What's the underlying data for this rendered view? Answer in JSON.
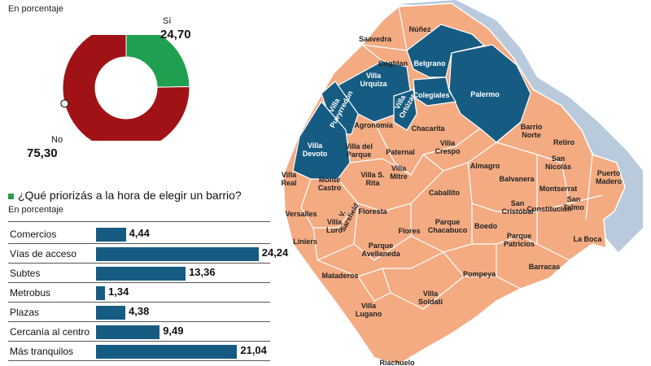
{
  "donut": {
    "subtitle": "En porcentaje",
    "slices": [
      {
        "name": "Sí",
        "value": 24.7,
        "label": "24,70",
        "color": "#1fa050"
      },
      {
        "name": "No",
        "value": 75.3,
        "label": "75,30",
        "color": "#a01215"
      }
    ]
  },
  "bars_section": {
    "title": "¿Qué priorizás a la hora de elegir un barrio?",
    "subtitle": "En porcentaje"
  },
  "chart_data": [
    {
      "type": "pie",
      "title": "",
      "categories": [
        "Sí",
        "No"
      ],
      "values": [
        24.7,
        75.3
      ]
    },
    {
      "type": "bar",
      "title": "¿Qué priorizás a la hora de elegir un barrio?",
      "categories": [
        "Comercios",
        "Vías de acceso",
        "Subtes",
        "Metrobus",
        "Plazas",
        "Cercanía al centro",
        "Más tranquilos"
      ],
      "values": [
        4.44,
        24.24,
        13.36,
        1.34,
        4.38,
        9.49,
        21.04
      ],
      "value_labels": [
        "4,44",
        "24,24",
        "13,36",
        "1,34",
        "4,38",
        "9,49",
        "21,04"
      ],
      "ylim": [
        0,
        25
      ]
    }
  ],
  "map": {
    "colors": {
      "highlight": "#165c82",
      "normal": "#f4ab82",
      "border": "#ffffff",
      "water": "#b0c4d8"
    },
    "neighborhoods": [
      {
        "name": "Saavedra",
        "hl": false
      },
      {
        "name": "Núñez",
        "hl": false
      },
      {
        "name": "Coghlan",
        "hl": false
      },
      {
        "name": "Belgrano",
        "hl": true
      },
      {
        "name": "Villa Urquiza",
        "hl": true
      },
      {
        "name": "Villa Pueyrredón",
        "hl": true
      },
      {
        "name": "Villa Ortúzar",
        "hl": true
      },
      {
        "name": "Colegiales",
        "hl": true
      },
      {
        "name": "Palermo",
        "hl": true
      },
      {
        "name": "Agronomía",
        "hl": false
      },
      {
        "name": "Chacarita",
        "hl": false
      },
      {
        "name": "Villa Devoto",
        "hl": true
      },
      {
        "name": "Villa del Parque",
        "hl": false
      },
      {
        "name": "Paternal",
        "hl": false
      },
      {
        "name": "Villa Crespo",
        "hl": false
      },
      {
        "name": "Almagro",
        "hl": false
      },
      {
        "name": "Barrio Norte",
        "hl": false
      },
      {
        "name": "Retiro",
        "hl": false
      },
      {
        "name": "Villa Real",
        "hl": false
      },
      {
        "name": "Monte Castro",
        "hl": false
      },
      {
        "name": "Villa S. Rita",
        "hl": false
      },
      {
        "name": "Villa Mitre",
        "hl": false
      },
      {
        "name": "Caballito",
        "hl": false
      },
      {
        "name": "Balvanera",
        "hl": false
      },
      {
        "name": "San Nicolás",
        "hl": false
      },
      {
        "name": "Puerto Madero",
        "hl": false
      },
      {
        "name": "Montserrat",
        "hl": false
      },
      {
        "name": "Versalles",
        "hl": false
      },
      {
        "name": "V. Sarsfield",
        "hl": false
      },
      {
        "name": "Floresta",
        "hl": false
      },
      {
        "name": "San Cristóbal",
        "hl": false
      },
      {
        "name": "Constitución",
        "hl": false
      },
      {
        "name": "San Telmo",
        "hl": false
      },
      {
        "name": "Liniers",
        "hl": false
      },
      {
        "name": "Villa Luro",
        "hl": false
      },
      {
        "name": "Flores",
        "hl": false
      },
      {
        "name": "Parque Chacabuco",
        "hl": false
      },
      {
        "name": "Boedo",
        "hl": false
      },
      {
        "name": "Parque Patricios",
        "hl": false
      },
      {
        "name": "La Boca",
        "hl": false
      },
      {
        "name": "Parque Avellaneda",
        "hl": false
      },
      {
        "name": "Barracas",
        "hl": false
      },
      {
        "name": "Mataderos",
        "hl": false
      },
      {
        "name": "Pompeya",
        "hl": false
      },
      {
        "name": "Villa Soldati",
        "hl": false
      },
      {
        "name": "Villa Lugano",
        "hl": false
      },
      {
        "name": "Riachuelo",
        "hl": false
      }
    ]
  }
}
